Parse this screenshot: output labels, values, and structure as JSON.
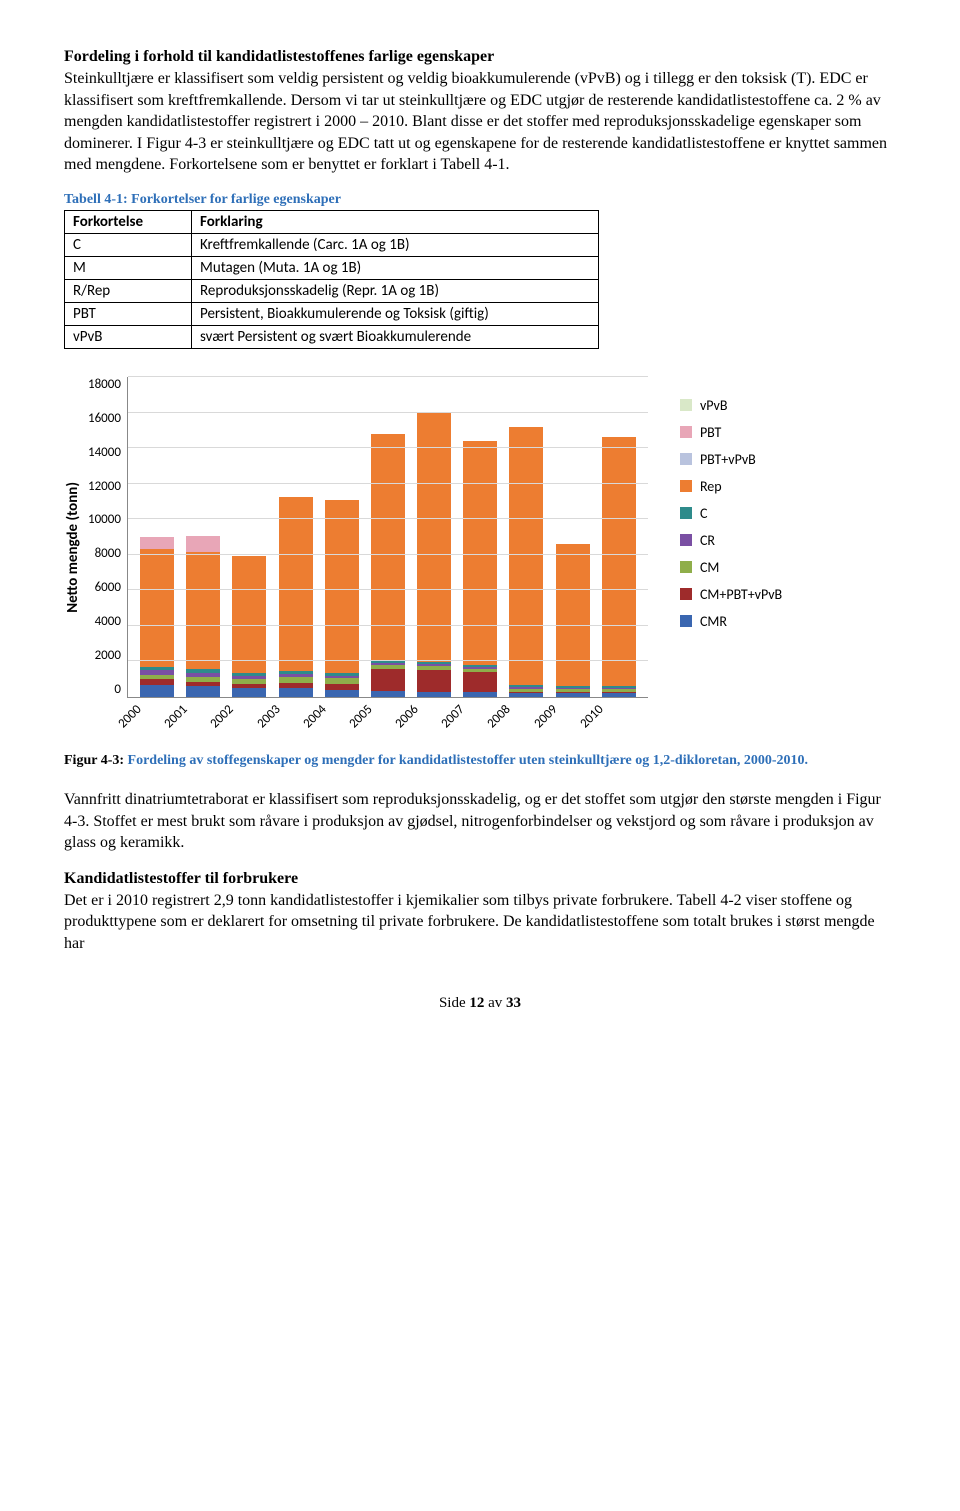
{
  "section1": {
    "heading": "Fordeling i forhold til kandidatlistestoffenes farlige egenskaper",
    "para": "Steinkulltjære er klassifisert som veldig persistent og veldig bioakkumulerende (vPvB) og i tillegg er den toksisk (T). EDC er klassifisert som kreftfremkallende. Dersom vi tar ut steinkulltjære og EDC utgjør de resterende kandidatlistestoffene ca. 2 % av mengden kandidatlistestoffer registrert i 2000 – 2010. Blant disse er det stoffer med reproduksjonsskadelige egenskaper som dominerer. I Figur 4-3 er steinkulltjære og EDC tatt ut og egenskapene for de resterende kandidatlistestoffene er knyttet sammen med mengdene. Forkortelsene som er benyttet er forklart i Tabell 4-1."
  },
  "table": {
    "caption": "Tabell 4-1: Forkortelser for farlige egenskaper",
    "head": {
      "c0": "Forkortelse",
      "c1": "Forklaring"
    },
    "rows": [
      {
        "c0": "C",
        "c1": "Kreftfremkallende (Carc. 1A og 1B)"
      },
      {
        "c0": "M",
        "c1": "Mutagen (Muta. 1A og 1B)"
      },
      {
        "c0": "R/Rep",
        "c1": "Reproduksjonsskadelig (Repr. 1A og 1B)"
      },
      {
        "c0": "PBT",
        "c1": "Persistent, Bioakkumulerende og Toksisk (giftig)"
      },
      {
        "c0": "vPvB",
        "c1": "svært Persistent og svært Bioakkumulerende"
      }
    ]
  },
  "chart": {
    "type": "stacked-bar",
    "ylabel": "Netto mengde (tonn)",
    "ylim": [
      0,
      18000
    ],
    "ytick_step": 2000,
    "yticks": [
      "18000",
      "16000",
      "14000",
      "12000",
      "10000",
      "8000",
      "6000",
      "4000",
      "2000",
      "0"
    ],
    "grid_color": "#d9d9d9",
    "background_color": "#ffffff",
    "categories": [
      "2000",
      "2001",
      "2002",
      "2003",
      "2004",
      "2005",
      "2006",
      "2007",
      "2008",
      "2009",
      "2010"
    ],
    "series_order_bottom_to_top": [
      "CMR",
      "CM+PBT+vPvB",
      "CM",
      "CR",
      "C",
      "Rep",
      "PBT+vPvB",
      "PBT",
      "vPvB"
    ],
    "colors": {
      "vPvB": "#d9e8c8",
      "PBT": "#e8a6b7",
      "PBT+vPvB": "#b9c3de",
      "Rep": "#ed7d31",
      "C": "#2e8b8b",
      "CR": "#7a4fa3",
      "CM": "#8fae4a",
      "CM+PBT+vPvB": "#9e2b2b",
      "CMR": "#3a66b0"
    },
    "values": {
      "2000": {
        "CMR": 700,
        "CM+PBT+vPvB": 300,
        "CM": 250,
        "CR": 250,
        "C": 200,
        "Rep": 6600,
        "PBT+vPvB": 0,
        "PBT": 700,
        "vPvB": 0
      },
      "2001": {
        "CMR": 600,
        "CM+PBT+vPvB": 250,
        "CM": 250,
        "CR": 250,
        "C": 200,
        "Rep": 6600,
        "PBT+vPvB": 0,
        "PBT": 900,
        "vPvB": 0
      },
      "2002": {
        "CMR": 500,
        "CM+PBT+vPvB": 250,
        "CM": 250,
        "CR": 200,
        "C": 150,
        "Rep": 6600,
        "PBT+vPvB": 0,
        "PBT": 0,
        "vPvB": 0
      },
      "2003": {
        "CMR": 500,
        "CM+PBT+vPvB": 300,
        "CM": 300,
        "CR": 200,
        "C": 150,
        "Rep": 9800,
        "PBT+vPvB": 0,
        "PBT": 0,
        "vPvB": 0
      },
      "2004": {
        "CMR": 400,
        "CM+PBT+vPvB": 350,
        "CM": 300,
        "CR": 150,
        "C": 150,
        "Rep": 9750,
        "PBT+vPvB": 0,
        "PBT": 0,
        "vPvB": 0
      },
      "2005": {
        "CMR": 350,
        "CM+PBT+vPvB": 1200,
        "CM": 250,
        "CR": 100,
        "C": 100,
        "Rep": 12800,
        "PBT+vPvB": 0,
        "PBT": 0,
        "vPvB": 0
      },
      "2006": {
        "CMR": 300,
        "CM+PBT+vPvB": 1200,
        "CM": 250,
        "CR": 100,
        "C": 100,
        "Rep": 14100,
        "PBT+vPvB": 0,
        "PBT": 0,
        "vPvB": 0
      },
      "2007": {
        "CMR": 300,
        "CM+PBT+vPvB": 1100,
        "CM": 200,
        "CR": 100,
        "C": 100,
        "Rep": 12600,
        "PBT+vPvB": 0,
        "PBT": 0,
        "vPvB": 0
      },
      "2008": {
        "CMR": 200,
        "CM+PBT+vPvB": 100,
        "CM": 150,
        "CR": 100,
        "C": 100,
        "Rep": 14550,
        "PBT+vPvB": 0,
        "PBT": 0,
        "vPvB": 0
      },
      "2009": {
        "CMR": 200,
        "CM+PBT+vPvB": 100,
        "CM": 150,
        "CR": 50,
        "C": 100,
        "Rep": 8000,
        "PBT+vPvB": 0,
        "PBT": 0,
        "vPvB": 0
      },
      "2010": {
        "CMR": 200,
        "CM+PBT+vPvB": 100,
        "CM": 150,
        "CR": 50,
        "C": 100,
        "Rep": 14000,
        "PBT+vPvB": 0,
        "PBT": 0,
        "vPvB": 0
      }
    },
    "legend_order": [
      "vPvB",
      "PBT",
      "PBT+vPvB",
      "Rep",
      "C",
      "CR",
      "CM",
      "CM+PBT+vPvB",
      "CMR"
    ]
  },
  "fig_caption": {
    "lead": "Figur 4-3: ",
    "rest": "Fordeling av stoffegenskaper og mengder for kandidatlistestoffer uten steinkulltjære og 1,2-dikloretan, 2000-2010."
  },
  "section2": {
    "para1": "Vannfritt dinatriumtetraborat er klassifisert som reproduksjonsskadelig, og er det stoffet som utgjør den største mengden i Figur 4-3. Stoffet er mest brukt som råvare i produksjon av gjødsel, nitrogenforbindelser og vekstjord og som råvare i produksjon av glass og keramikk.",
    "heading2": "Kandidatlistestoffer til forbrukere",
    "para2": "Det er i 2010 registrert 2,9 tonn kandidatlistestoffer i kjemikalier som tilbys private forbrukere. Tabell 4-2 viser stoffene og produkttypene som er deklarert for omsetning til private forbrukere. De kandidatlistestoffene som totalt brukes i størst mengde har"
  },
  "footer": {
    "prefix": "Side ",
    "page": "12",
    "of": " av ",
    "total": "33"
  }
}
